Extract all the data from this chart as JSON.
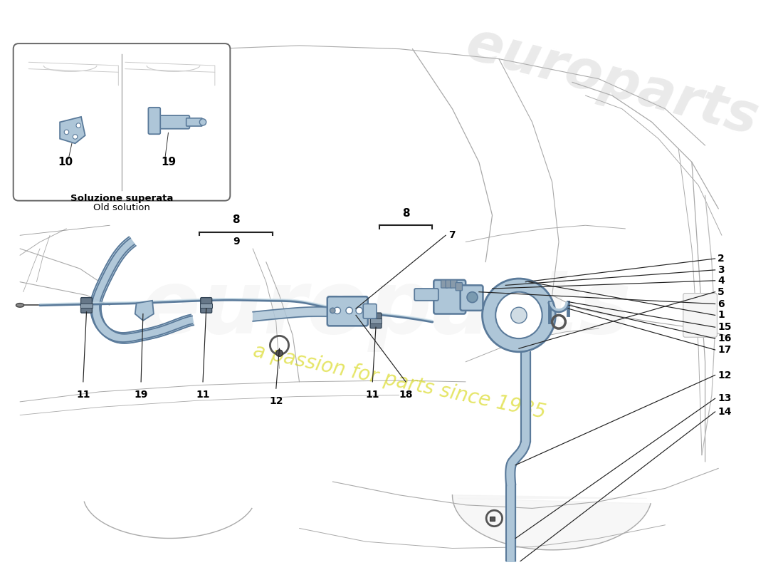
{
  "bg_color": "#ffffff",
  "comp_color": "#aec6d8",
  "comp_edge": "#5a7a9a",
  "line_color": "#333333",
  "car_line_color": "#aaaaaa",
  "leader_color": "#111111",
  "inset_label1": "Soluzione superata",
  "inset_label2": "Old solution",
  "watermark1": "europarts",
  "watermark2": "a passion for parts since 1985",
  "wm_color1": "#cccccc",
  "wm_color2": "#d4d400"
}
